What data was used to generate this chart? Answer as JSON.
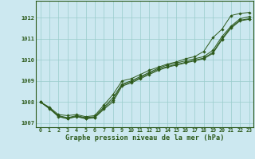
{
  "title": "Graphe pression niveau de la mer (hPa)",
  "bg_color": "#cce8f0",
  "grid_color": "#99cccc",
  "line_color": "#2d5a1b",
  "marker_color": "#2d5a1b",
  "xlim": [
    -0.5,
    23.5
  ],
  "ylim": [
    1006.8,
    1012.8
  ],
  "xticks": [
    0,
    1,
    2,
    3,
    4,
    5,
    6,
    7,
    8,
    9,
    10,
    11,
    12,
    13,
    14,
    15,
    16,
    17,
    18,
    19,
    20,
    21,
    22,
    23
  ],
  "yticks": [
    1007,
    1008,
    1009,
    1010,
    1011,
    1012
  ],
  "series1": [
    1008.0,
    1007.75,
    1007.4,
    1007.35,
    1007.4,
    1007.3,
    1007.35,
    1007.85,
    1008.35,
    1009.0,
    1009.1,
    1009.3,
    1009.5,
    1009.65,
    1009.8,
    1009.9,
    1010.05,
    1010.15,
    1010.4,
    1011.05,
    1011.45,
    1012.1,
    1012.2,
    1012.25
  ],
  "series2": [
    1008.0,
    1007.7,
    1007.35,
    1007.25,
    1007.35,
    1007.25,
    1007.3,
    1007.75,
    1008.2,
    1008.85,
    1009.0,
    1009.2,
    1009.4,
    1009.6,
    1009.75,
    1009.85,
    1009.95,
    1010.05,
    1010.15,
    1010.45,
    1011.1,
    1011.6,
    1011.95,
    1012.05
  ],
  "series3": [
    1008.0,
    1007.72,
    1007.32,
    1007.22,
    1007.32,
    1007.22,
    1007.27,
    1007.7,
    1008.1,
    1008.8,
    1008.95,
    1009.15,
    1009.35,
    1009.55,
    1009.68,
    1009.78,
    1009.88,
    1009.98,
    1010.08,
    1010.35,
    1011.0,
    1011.55,
    1011.88,
    1011.95
  ],
  "series4": [
    1008.0,
    1007.68,
    1007.3,
    1007.2,
    1007.3,
    1007.2,
    1007.25,
    1007.65,
    1008.0,
    1008.75,
    1008.9,
    1009.1,
    1009.3,
    1009.5,
    1009.65,
    1009.75,
    1009.85,
    1009.95,
    1010.05,
    1010.3,
    1010.95,
    1011.5,
    1011.85,
    1011.92
  ]
}
